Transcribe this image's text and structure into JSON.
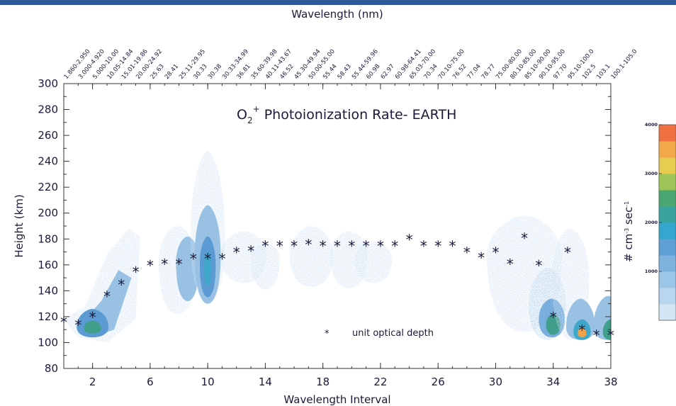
{
  "chart_data": {
    "type": "heatmap",
    "title": "O",
    "title_sub": "2",
    "title_sup": "+",
    "title_rest": " Photoionization Rate- EARTH",
    "xlabel": "Wavelength Interval",
    "x2label": "Wavelength (nm)",
    "ylabel": "Height (km)",
    "xlim": [
      0,
      38
    ],
    "ylim": [
      80,
      300
    ],
    "x_ticks": [
      2,
      6,
      10,
      14,
      18,
      22,
      26,
      30,
      34,
      38
    ],
    "y_ticks": [
      80,
      100,
      120,
      140,
      160,
      180,
      200,
      220,
      240,
      260,
      280,
      300
    ],
    "top_labels": [
      "1.860-2.950",
      "3.000-4.920",
      "5.000-10.00",
      "10.05-14.84",
      "15.01-19.86",
      "20.00-24.92",
      "25.63",
      "28.41",
      "25.11-29.95",
      "30.33",
      "30.38",
      "30.33-34.99",
      "36.81",
      "35.60-39.98",
      "40.11-43.67",
      "46.52",
      "45.30-49.94",
      "50.00-55.00",
      "55.44",
      "58.43",
      "55.44-59.96",
      "60.98",
      "62.97",
      "60.98-64.41",
      "65.03-70.00",
      "70.34",
      "70.10-75.00",
      "76.52",
      "77.04",
      "78.77",
      "75.00-80.00",
      "80.10-85.00",
      "85.10-90.00",
      "90.10-95.00",
      "97.70",
      "95.10-100.0",
      "102.5",
      "103.1",
      "100.1-105.0"
    ],
    "unit_optical_depth": {
      "x": [
        0,
        1,
        2,
        3,
        4,
        5,
        6,
        7,
        8,
        9,
        10,
        11,
        12,
        13,
        14,
        15,
        16,
        17,
        18,
        19,
        20,
        21,
        22,
        23,
        24,
        25,
        26,
        27,
        28,
        29,
        30,
        31,
        32,
        33,
        34,
        35,
        36,
        37,
        38
      ],
      "y": [
        116,
        114,
        120,
        136,
        145,
        155,
        160,
        161,
        161,
        165,
        165,
        165,
        170,
        171,
        175,
        175,
        175,
        176,
        175,
        175,
        175,
        175,
        175,
        175,
        180,
        175,
        175,
        175,
        170,
        166,
        170,
        161,
        181,
        160,
        120,
        170,
        110,
        106,
        106
      ]
    },
    "legend": "unit optical depth",
    "colorbar": {
      "label": "# cm",
      "label_sup1": "-3",
      "label_mid": " sec",
      "label_sup2": "-1",
      "range": [
        0,
        4000
      ],
      "ticks": [
        1000,
        2000,
        3000,
        4000
      ],
      "colors": [
        "#d4e6f5",
        "#b8d6ee",
        "#9cc6e7",
        "#7fb2de",
        "#5e9fd6",
        "#35a6cf",
        "#3aa3a0",
        "#4aa772",
        "#9ec356",
        "#e6cc4f",
        "#f2a94a",
        "#ef7040"
      ]
    }
  }
}
